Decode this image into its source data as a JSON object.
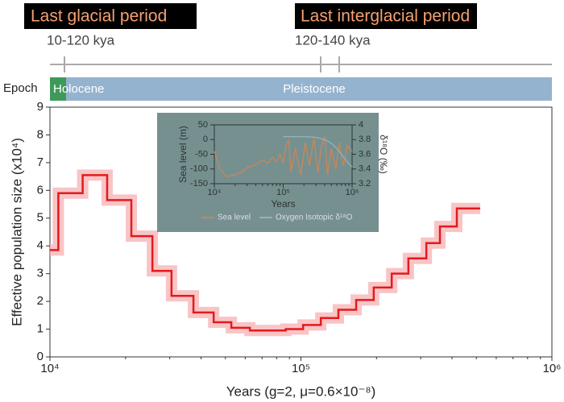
{
  "header": {
    "periods": [
      {
        "title": "Last glacial period",
        "range": "10-120 kya"
      },
      {
        "title": "Last interglacial period",
        "range": "120-140 kya"
      }
    ],
    "epoch": {
      "label": "Epoch",
      "eras": [
        "Holocene",
        "Pleistocene"
      ]
    }
  },
  "chart_data": [
    {
      "type": "line",
      "xlabel": "Years (g=2, μ=0.6×10⁻⁸)",
      "ylabel": "Effective population size (x10⁴)",
      "xscale": "log",
      "xlim": [
        10000,
        1000000
      ],
      "xticks": [
        {
          "value": 10000,
          "label": "10⁴"
        },
        {
          "value": 100000,
          "label": "10⁵"
        },
        {
          "value": 1000000,
          "label": "10⁶"
        }
      ],
      "ylim": [
        0,
        9
      ],
      "yticks": [
        0,
        1,
        2,
        3,
        4,
        5,
        6,
        7,
        8,
        9
      ],
      "step": "post",
      "series": [
        {
          "color": "#e41a1c",
          "x": [
            10000,
            10800,
            13500,
            16900,
            21100,
            25600,
            30500,
            37300,
            44900,
            52800,
            62600,
            87000,
            102000,
            120000,
            141000,
            166000,
            195000,
            230000,
            268000,
            316000,
            358000,
            418000,
            518000
          ],
          "values": [
            3.85,
            5.9,
            6.55,
            5.65,
            4.35,
            3.1,
            2.2,
            1.6,
            1.25,
            1.05,
            0.95,
            1.0,
            1.15,
            1.4,
            1.7,
            2.05,
            2.5,
            3.0,
            3.55,
            4.1,
            4.7,
            5.35,
            5.35
          ]
        }
      ]
    },
    {
      "type": "line",
      "xlabel": "Years",
      "ylabel": "Sea level (m)",
      "y2label": "δ¹⁸O (‰)",
      "xscale": "log",
      "xlim": [
        10000,
        1000000
      ],
      "xticks": [
        {
          "value": 10000,
          "label": "10⁴"
        },
        {
          "value": 100000,
          "label": "10⁵"
        },
        {
          "value": 1000000,
          "label": "10⁶"
        }
      ],
      "ylim": [
        -150,
        50
      ],
      "yticks": [
        -150,
        -100,
        -50,
        0,
        50
      ],
      "y2lim": [
        3.2,
        4
      ],
      "y2ticks": [
        3.2,
        3.4,
        3.6,
        3.8,
        4
      ],
      "series": [
        {
          "name": "Sea level",
          "color": "#c8875a",
          "x": [
            10000,
            12000,
            15000,
            20000,
            25000,
            30000,
            40000,
            50000,
            60000,
            70000,
            80000,
            90000,
            100000,
            110000,
            120000,
            130000,
            150000,
            180000,
            210000,
            240000,
            280000,
            320000,
            360000,
            400000,
            440000,
            500000,
            580000,
            650000,
            750000,
            850000,
            1000000
          ],
          "values": [
            -40,
            -100,
            -125,
            -120,
            -110,
            -95,
            -85,
            -70,
            -80,
            -60,
            -75,
            -50,
            -80,
            -20,
            0,
            -110,
            -30,
            -120,
            -10,
            -90,
            5,
            -115,
            -20,
            10,
            -120,
            -30,
            -100,
            -10,
            -90,
            -20,
            -40
          ]
        },
        {
          "name": "Oxygen Isotopic δ¹⁸O",
          "color": "#8fb4bc",
          "axis": "y2",
          "x": [
            100000,
            200000,
            300000,
            400000,
            500000,
            600000,
            700000,
            800000,
            900000,
            1000000
          ],
          "values": [
            3.84,
            3.84,
            3.83,
            3.8,
            3.75,
            3.68,
            3.6,
            3.53,
            3.47,
            3.43
          ]
        }
      ]
    }
  ]
}
